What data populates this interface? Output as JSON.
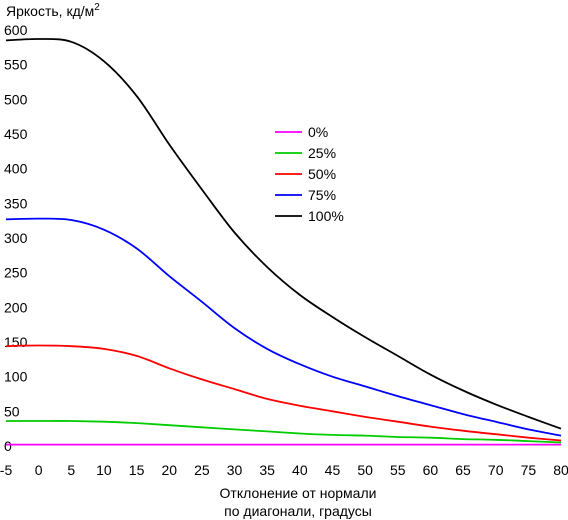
{
  "chart_data": {
    "type": "line",
    "ylabel": "Яркость, кд/м",
    "ylabel_sup": "2",
    "xlabel_line1": "Отклонение от нормали",
    "xlabel_line2": "по диагонали, градусы",
    "xlim": [
      -5,
      80
    ],
    "ylim": [
      0,
      600
    ],
    "xticks": [
      -5,
      0,
      5,
      10,
      15,
      20,
      25,
      30,
      35,
      40,
      45,
      50,
      55,
      60,
      65,
      70,
      75,
      80
    ],
    "yticks": [
      0,
      50,
      100,
      150,
      200,
      250,
      300,
      350,
      400,
      450,
      500,
      550,
      600
    ],
    "grid": false,
    "legend_position": "center-right",
    "x": [
      -5,
      0,
      5,
      10,
      15,
      20,
      25,
      30,
      35,
      40,
      45,
      50,
      55,
      60,
      65,
      70,
      75,
      80
    ],
    "series": [
      {
        "name": "0%",
        "color": "#ff00ff",
        "values": [
          2,
          2,
          2,
          2,
          2,
          2,
          2,
          2,
          2,
          2,
          2,
          2,
          2,
          2,
          2,
          2,
          2,
          2
        ]
      },
      {
        "name": "25%",
        "color": "#00cc00",
        "values": [
          36,
          36,
          36,
          35,
          33,
          30,
          27,
          24,
          21,
          18,
          16,
          15,
          13,
          12,
          10,
          9,
          7,
          5
        ]
      },
      {
        "name": "50%",
        "color": "#ff0000",
        "values": [
          144,
          145,
          144,
          140,
          130,
          112,
          96,
          82,
          68,
          58,
          50,
          42,
          35,
          28,
          22,
          17,
          12,
          8
        ]
      },
      {
        "name": "75%",
        "color": "#0000ff",
        "values": [
          327,
          328,
          326,
          312,
          285,
          245,
          208,
          170,
          140,
          118,
          100,
          86,
          72,
          59,
          46,
          35,
          24,
          15
        ]
      },
      {
        "name": "100%",
        "color": "#000000",
        "values": [
          585,
          587,
          583,
          555,
          505,
          435,
          370,
          308,
          258,
          218,
          186,
          157,
          130,
          103,
          80,
          60,
          42,
          25
        ]
      }
    ]
  }
}
